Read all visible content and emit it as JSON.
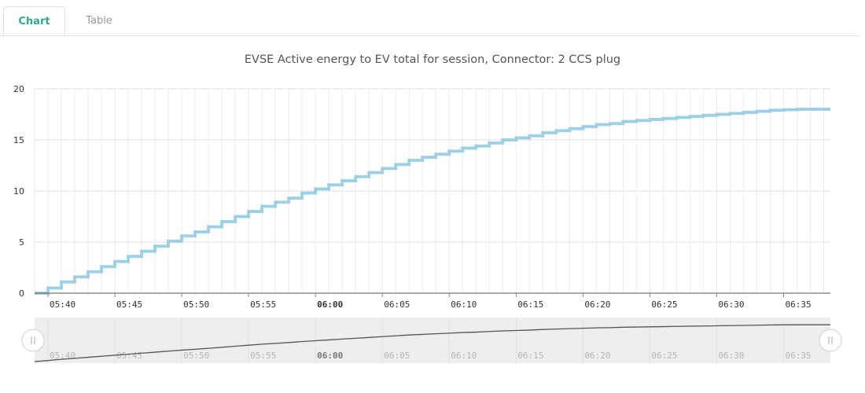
{
  "tabs": [
    {
      "label": "Chart",
      "active": true
    },
    {
      "label": "Table",
      "active": false
    }
  ],
  "colors": {
    "accent": "#2eaa88",
    "series": "#7fc6e2",
    "series_dark": "#5aaed0",
    "navigator_bg": "#eeeeee",
    "navigator_line": "#555555"
  },
  "navigator": {
    "left_handle_icon": "drag-handle-icon",
    "right_handle_icon": "drag-handle-icon"
  },
  "chart_data": {
    "type": "line",
    "title": "EVSE Active energy to EV total for session, Connector: 2 CCS plug",
    "xlabel": "",
    "ylabel": "",
    "x_range_minutes": [
      339.0,
      398.5
    ],
    "ylim": [
      0,
      20
    ],
    "yticks": [
      0,
      5,
      10,
      15,
      20
    ],
    "xticks": [
      {
        "label": "05:40",
        "minute": 340,
        "bold": false
      },
      {
        "label": "05:45",
        "minute": 345,
        "bold": false
      },
      {
        "label": "05:50",
        "minute": 350,
        "bold": false
      },
      {
        "label": "05:55",
        "minute": 355,
        "bold": false
      },
      {
        "label": "06:00",
        "minute": 360,
        "bold": true
      },
      {
        "label": "06:05",
        "minute": 365,
        "bold": false
      },
      {
        "label": "06:10",
        "minute": 370,
        "bold": false
      },
      {
        "label": "06:15",
        "minute": 375,
        "bold": false
      },
      {
        "label": "06:20",
        "minute": 380,
        "bold": false
      },
      {
        "label": "06:25",
        "minute": 385,
        "bold": false
      },
      {
        "label": "06:30",
        "minute": 390,
        "bold": false
      },
      {
        "label": "06:35",
        "minute": 395,
        "bold": false
      }
    ],
    "grid": true,
    "series": [
      {
        "x_minutes": [
          339.0,
          340,
          341,
          342,
          343,
          344,
          345,
          346,
          347,
          348,
          349,
          350,
          351,
          352,
          353,
          354,
          355,
          356,
          357,
          358,
          359,
          360,
          361,
          362,
          363,
          364,
          365,
          366,
          367,
          368,
          369,
          370,
          371,
          372,
          373,
          374,
          375,
          376,
          377,
          378,
          379,
          380,
          381,
          382,
          383,
          384,
          385,
          386,
          387,
          388,
          389,
          390,
          391,
          392,
          393,
          394,
          395,
          396,
          397,
          398,
          398.5
        ],
        "values": [
          0.0,
          0.5,
          1.1,
          1.6,
          2.1,
          2.6,
          3.1,
          3.6,
          4.1,
          4.6,
          5.1,
          5.6,
          6.0,
          6.5,
          7.0,
          7.5,
          8.0,
          8.5,
          8.9,
          9.3,
          9.8,
          10.2,
          10.6,
          11.0,
          11.4,
          11.8,
          12.2,
          12.6,
          13.0,
          13.3,
          13.6,
          13.9,
          14.2,
          14.4,
          14.7,
          15.0,
          15.2,
          15.4,
          15.7,
          15.9,
          16.1,
          16.3,
          16.5,
          16.6,
          16.8,
          16.9,
          17.0,
          17.1,
          17.2,
          17.3,
          17.4,
          17.5,
          17.6,
          17.7,
          17.8,
          17.9,
          17.95,
          18.0,
          18.0,
          18.0,
          18.0
        ]
      }
    ]
  }
}
